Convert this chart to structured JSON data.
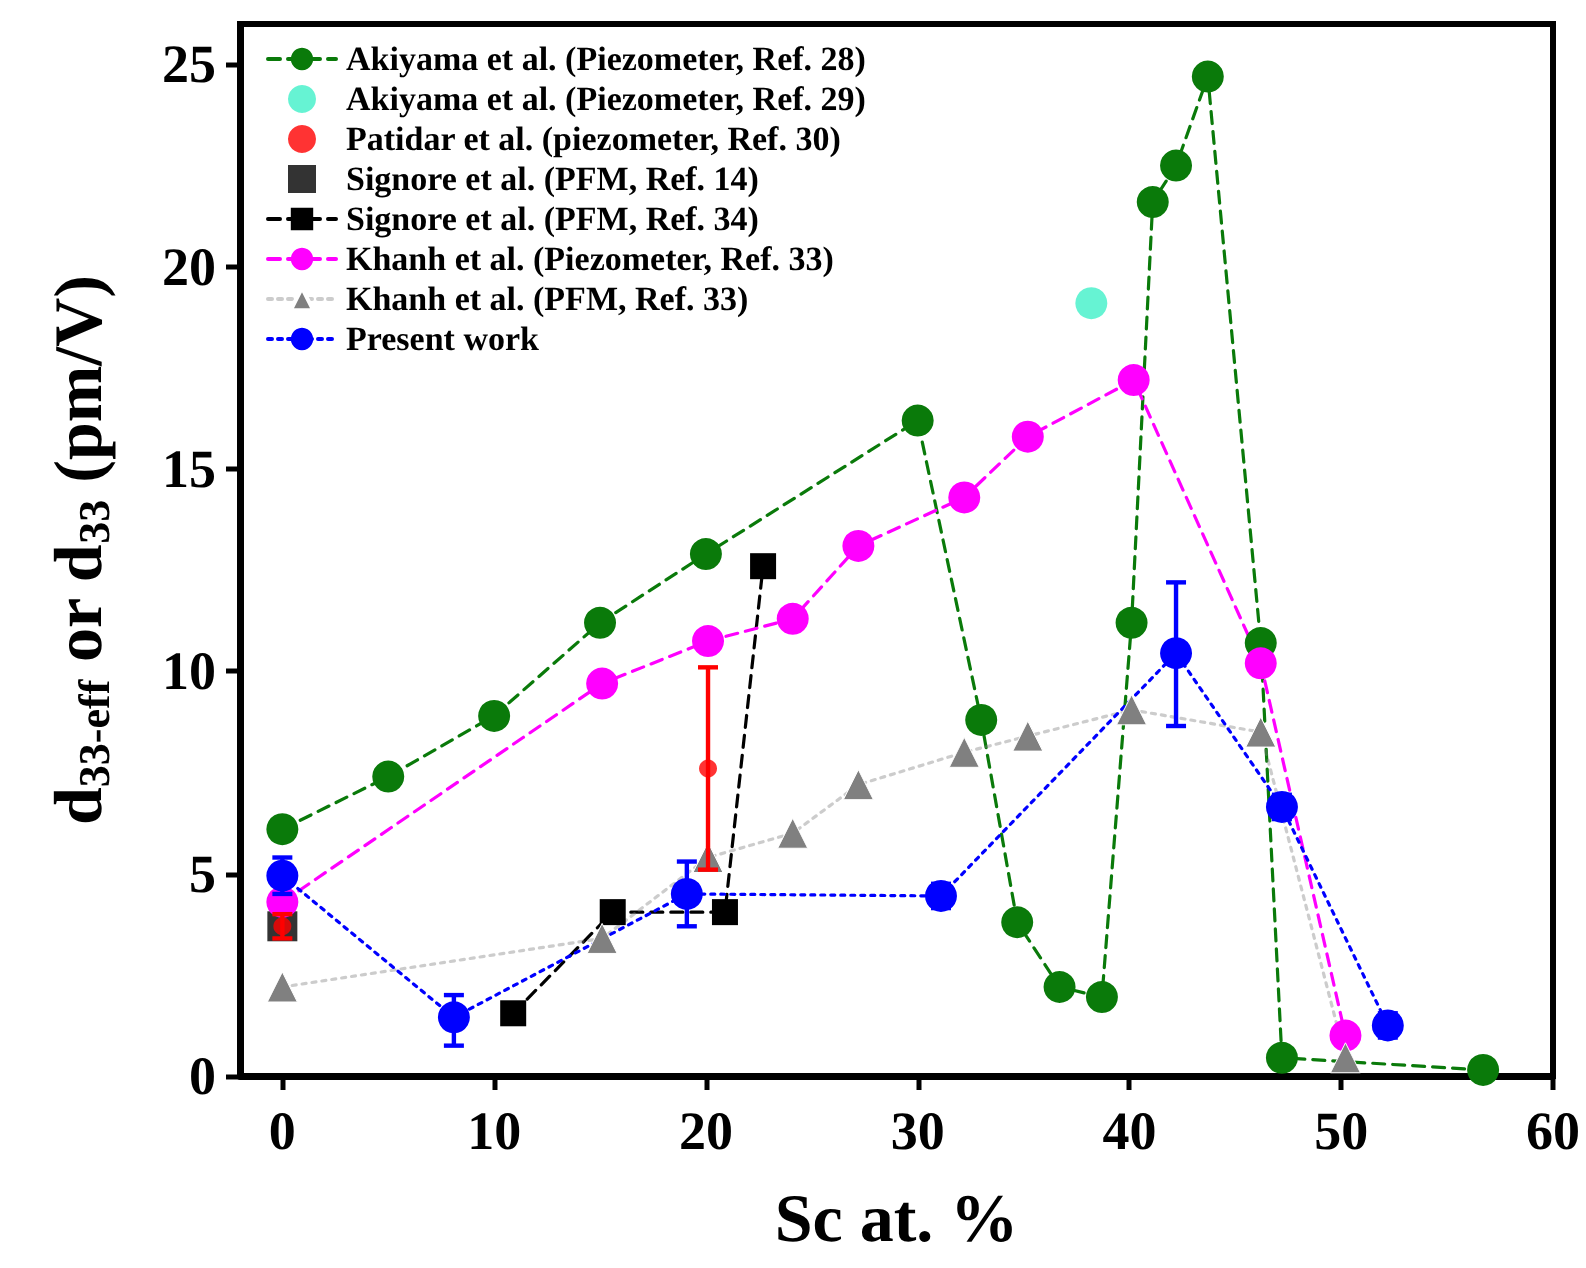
{
  "chart_data": {
    "type": "line",
    "xlabel": "Sc at. %",
    "ylabel": "d$_{33-eff}$ or d$_{33}$ (pm/V)",
    "xlim": [
      -2,
      60
    ],
    "ylim": [
      0,
      26
    ],
    "xticks": [
      0,
      10,
      20,
      30,
      40,
      50,
      60
    ],
    "yticks": [
      0,
      5,
      10,
      15,
      20,
      25
    ],
    "grid": false,
    "legend": "top left",
    "series": [
      {
        "name": "Akiyama et al. (Piezometer, Ref. 28)",
        "color": "#0a7a0a",
        "marker": "circle",
        "line_style": "dashed",
        "x": [
          0,
          5,
          10,
          15,
          20,
          30,
          33,
          34.7,
          36.7,
          38.7,
          40.1,
          41.1,
          42.2,
          43.7,
          46.2,
          47.2,
          56.7
        ],
        "values": [
          6.1,
          7.4,
          8.9,
          11.2,
          12.9,
          16.2,
          8.8,
          3.8,
          2.2,
          1.95,
          11.2,
          21.6,
          22.5,
          24.7,
          10.7,
          0.45,
          0.15
        ]
      },
      {
        "name": "Akiyama et al. (Piezometer, Ref. 29)",
        "type": "scatter",
        "color": "#40f0c8",
        "marker": "circle",
        "x": [
          38.2
        ],
        "values": [
          19.1
        ]
      },
      {
        "name": "Patidar et al. (piezometer, Ref. 30)",
        "type": "scatter",
        "color": "#ff0000",
        "marker": "circle",
        "x": [
          0,
          20.1
        ],
        "values": [
          3.7,
          7.6
        ],
        "errors": [
          [
            3.4,
            4.0
          ],
          [
            5.1,
            10.1
          ]
        ]
      },
      {
        "name": "Signore et al. (PFM, Ref. 14)",
        "type": "scatter",
        "color": "#000000",
        "marker": "square",
        "x": [
          0
        ],
        "values": [
          3.7
        ]
      },
      {
        "name": "Signore et al. (PFM, Ref. 34)",
        "color": "#000000",
        "marker": "square",
        "line_style": "dashed",
        "x": [
          10.9,
          15.6,
          20.9,
          22.7
        ],
        "values": [
          1.55,
          4.05,
          4.05,
          12.6
        ]
      },
      {
        "name": "Khanh et al. (Piezometer, Ref. 33)",
        "color": "#ff00ff",
        "marker": "circle",
        "line_style": "dashed",
        "x": [
          0,
          15.1,
          20.1,
          24.1,
          27.2,
          32.2,
          35.2,
          40.2,
          46.2,
          50.2
        ],
        "values": [
          4.3,
          9.7,
          10.75,
          11.3,
          13.1,
          14.3,
          15.8,
          17.2,
          10.2,
          1.0
        ]
      },
      {
        "name": "Khanh et al. (PFM, Ref. 33)",
        "color": "#808080",
        "marker": "triangle",
        "line_style": "dotted",
        "x": [
          0,
          15.1,
          20.1,
          24.1,
          27.2,
          32.2,
          35.2,
          40.1,
          46.2,
          50.2
        ],
        "values": [
          2.2,
          3.4,
          5.4,
          6.0,
          7.2,
          8.0,
          8.4,
          9.05,
          8.5,
          0.45
        ]
      },
      {
        "name": "Present work",
        "color": "#0000ff",
        "marker": "circle",
        "line_style": "dotted",
        "x": [
          0,
          8.1,
          19.1,
          31.1,
          42.2,
          47.2,
          52.2
        ],
        "values": [
          4.95,
          1.45,
          4.5,
          4.45,
          10.45,
          6.65,
          1.25
        ],
        "errors": [
          [
            4.5,
            5.4
          ],
          [
            0.75,
            2.0
          ],
          [
            3.7,
            5.3
          ],
          [
            4.15,
            4.75
          ],
          [
            8.65,
            12.2
          ],
          [
            6.35,
            6.95
          ],
          [
            0.95,
            1.55
          ]
        ]
      }
    ]
  }
}
